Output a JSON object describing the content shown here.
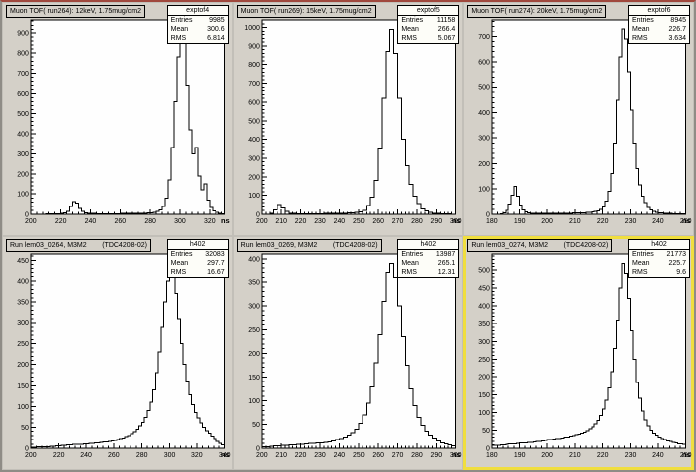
{
  "canvas": {
    "background_color": "#d4d0c8",
    "selected_pad_highlight_color": "#f0de3e",
    "frame_fill_color": "#fefefe",
    "histogram_line_color": "#000000"
  },
  "chart_data": [
    {
      "type": "histogram",
      "title": "Muon TOF( run264): 12keV, 1.75mug/cm2",
      "stats": {
        "name": "exptof4",
        "rows": [
          {
            "label": "Entries",
            "value": "9985"
          },
          {
            "label": "Mean",
            "value": "300.6"
          },
          {
            "label": "RMS",
            "value": "6.814"
          }
        ]
      },
      "xlabel": "ns",
      "xlim": [
        200,
        330
      ],
      "ylim": [
        0,
        966
      ],
      "xticks": [
        200,
        220,
        240,
        260,
        280,
        300,
        320
      ],
      "yticks": [
        0,
        100,
        200,
        300,
        400,
        500,
        600,
        700,
        800,
        900
      ],
      "x_start": 200,
      "bin_width": 2,
      "highlighted": false,
      "counts": [
        0,
        0,
        0,
        0,
        0,
        2,
        2,
        2,
        3,
        3,
        5,
        8,
        15,
        40,
        62,
        55,
        30,
        15,
        8,
        5,
        4,
        4,
        3,
        3,
        3,
        3,
        3,
        3,
        3,
        3,
        4,
        4,
        4,
        4,
        5,
        5,
        5,
        6,
        6,
        7,
        8,
        10,
        14,
        22,
        40,
        80,
        170,
        330,
        560,
        780,
        920,
        860,
        640,
        420,
        300,
        330,
        190,
        120,
        150,
        70,
        35,
        18,
        10,
        5,
        3
      ]
    },
    {
      "type": "histogram",
      "title": "Muon TOF( run269): 15keV, 1.75mug/cm2",
      "stats": {
        "name": "exptof5",
        "rows": [
          {
            "label": "Entries",
            "value": "11158"
          },
          {
            "label": "Mean",
            "value": "266.4"
          },
          {
            "label": "RMS",
            "value": "5.067"
          }
        ]
      },
      "xlabel": "ns",
      "xlim": [
        200,
        300
      ],
      "ylim": [
        0,
        1040
      ],
      "xticks": [
        200,
        210,
        220,
        230,
        240,
        250,
        260,
        270,
        280,
        290,
        300
      ],
      "yticks": [
        0,
        100,
        200,
        300,
        400,
        500,
        600,
        700,
        800,
        900,
        1000
      ],
      "x_start": 200,
      "bin_width": 2,
      "highlighted": false,
      "counts": [
        0,
        0,
        5,
        25,
        50,
        35,
        15,
        6,
        4,
        3,
        3,
        3,
        3,
        3,
        3,
        3,
        4,
        4,
        4,
        5,
        5,
        6,
        7,
        8,
        10,
        14,
        22,
        45,
        90,
        180,
        350,
        620,
        870,
        990,
        860,
        620,
        400,
        260,
        160,
        95,
        55,
        30,
        18,
        10,
        6,
        4,
        3,
        2,
        2,
        1
      ]
    },
    {
      "type": "histogram",
      "title": "Muon TOF( run274): 20keV, 1.75mug/cm2",
      "stats": {
        "name": "exptof6",
        "rows": [
          {
            "label": "Entries",
            "value": "8945"
          },
          {
            "label": "Mean",
            "value": "226.7"
          },
          {
            "label": "RMS",
            "value": "3.634"
          }
        ]
      },
      "xlabel": "ns",
      "xlim": [
        180,
        250
      ],
      "ylim": [
        0,
        766
      ],
      "xticks": [
        180,
        190,
        200,
        210,
        220,
        230,
        240,
        250
      ],
      "yticks": [
        0,
        100,
        200,
        300,
        400,
        500,
        600,
        700
      ],
      "x_start": 180,
      "bin_width": 1,
      "highlighted": false,
      "counts": [
        0,
        0,
        0,
        2,
        5,
        15,
        40,
        75,
        110,
        70,
        35,
        18,
        10,
        6,
        4,
        3,
        3,
        3,
        3,
        3,
        3,
        3,
        3,
        3,
        4,
        4,
        4,
        4,
        4,
        5,
        5,
        5,
        6,
        6,
        7,
        8,
        9,
        11,
        14,
        20,
        30,
        50,
        90,
        160,
        280,
        450,
        620,
        730,
        690,
        560,
        410,
        280,
        180,
        115,
        70,
        45,
        28,
        18,
        12,
        8,
        6,
        5,
        4,
        3,
        3,
        2,
        2,
        2,
        2,
        2
      ]
    },
    {
      "type": "histogram",
      "title": "Run lem03_0264, M3M2        (TDC4208-02)",
      "stats": {
        "name": "h402",
        "rows": [
          {
            "label": "Entries",
            "value": "32083"
          },
          {
            "label": "Mean",
            "value": "297.7"
          },
          {
            "label": "RMS",
            "value": "16.67"
          }
        ]
      },
      "xlabel": "ns",
      "xlim": [
        200,
        340
      ],
      "ylim": [
        0,
        465
      ],
      "xticks": [
        200,
        220,
        240,
        260,
        280,
        300,
        320,
        340
      ],
      "yticks": [
        0,
        50,
        100,
        150,
        200,
        250,
        300,
        350,
        400,
        450
      ],
      "x_start": 200,
      "bin_width": 2,
      "highlighted": false,
      "counts": [
        2,
        2,
        3,
        3,
        3,
        4,
        4,
        5,
        5,
        6,
        6,
        7,
        7,
        8,
        8,
        9,
        9,
        10,
        10,
        11,
        11,
        12,
        12,
        13,
        13,
        14,
        15,
        16,
        17,
        18,
        19,
        20,
        22,
        24,
        27,
        30,
        34,
        39,
        45,
        53,
        62,
        74,
        90,
        110,
        140,
        180,
        230,
        290,
        350,
        400,
        430,
        415,
        370,
        310,
        250,
        200,
        160,
        128,
        104,
        86,
        72,
        60,
        50,
        42,
        35,
        28,
        22,
        17,
        12,
        8
      ]
    },
    {
      "type": "histogram",
      "title": "Run lem03_0269, M3M2        (TDC4208-02)",
      "stats": {
        "name": "h402",
        "rows": [
          {
            "label": "Entries",
            "value": "13987"
          },
          {
            "label": "Mean",
            "value": "265.1"
          },
          {
            "label": "RMS",
            "value": "12.31"
          }
        ]
      },
      "xlabel": "ns",
      "xlim": [
        200,
        300
      ],
      "ylim": [
        0,
        410
      ],
      "xticks": [
        200,
        210,
        220,
        230,
        240,
        250,
        260,
        270,
        280,
        290,
        300
      ],
      "yticks": [
        0,
        50,
        100,
        150,
        200,
        250,
        300,
        350,
        400
      ],
      "x_start": 200,
      "bin_width": 2,
      "highlighted": false,
      "counts": [
        3,
        3,
        4,
        5,
        5,
        6,
        6,
        7,
        7,
        8,
        8,
        9,
        10,
        10,
        11,
        12,
        13,
        14,
        16,
        18,
        20,
        23,
        27,
        32,
        40,
        52,
        70,
        95,
        130,
        180,
        240,
        310,
        370,
        390,
        360,
        300,
        235,
        175,
        125,
        90,
        65,
        48,
        36,
        27,
        21,
        16,
        12,
        9,
        7,
        5
      ]
    },
    {
      "type": "histogram",
      "title": "Run lem03_0274, M3M2        (TDC4208-02)",
      "stats": {
        "name": "h402",
        "rows": [
          {
            "label": "Entries",
            "value": "21773"
          },
          {
            "label": "Mean",
            "value": "225.7"
          },
          {
            "label": "RMS",
            "value": "9.6"
          }
        ]
      },
      "xlabel": "ns",
      "xlim": [
        180,
        250
      ],
      "ylim": [
        0,
        546
      ],
      "xticks": [
        180,
        190,
        200,
        210,
        220,
        230,
        240,
        250
      ],
      "yticks": [
        0,
        50,
        100,
        150,
        200,
        250,
        300,
        350,
        400,
        450,
        500
      ],
      "x_start": 180,
      "bin_width": 1,
      "highlighted": true,
      "counts": [
        8,
        9,
        9,
        10,
        10,
        11,
        12,
        13,
        13,
        14,
        15,
        15,
        16,
        17,
        17,
        18,
        19,
        20,
        21,
        22,
        23,
        24,
        25,
        26,
        27,
        28,
        30,
        31,
        33,
        35,
        37,
        39,
        42,
        45,
        49,
        54,
        60,
        68,
        78,
        92,
        110,
        135,
        170,
        215,
        280,
        360,
        450,
        520,
        490,
        420,
        330,
        250,
        185,
        140,
        105,
        80,
        62,
        50,
        42,
        36,
        31,
        27,
        24,
        21,
        19,
        17,
        15,
        13,
        12,
        11
      ]
    }
  ]
}
